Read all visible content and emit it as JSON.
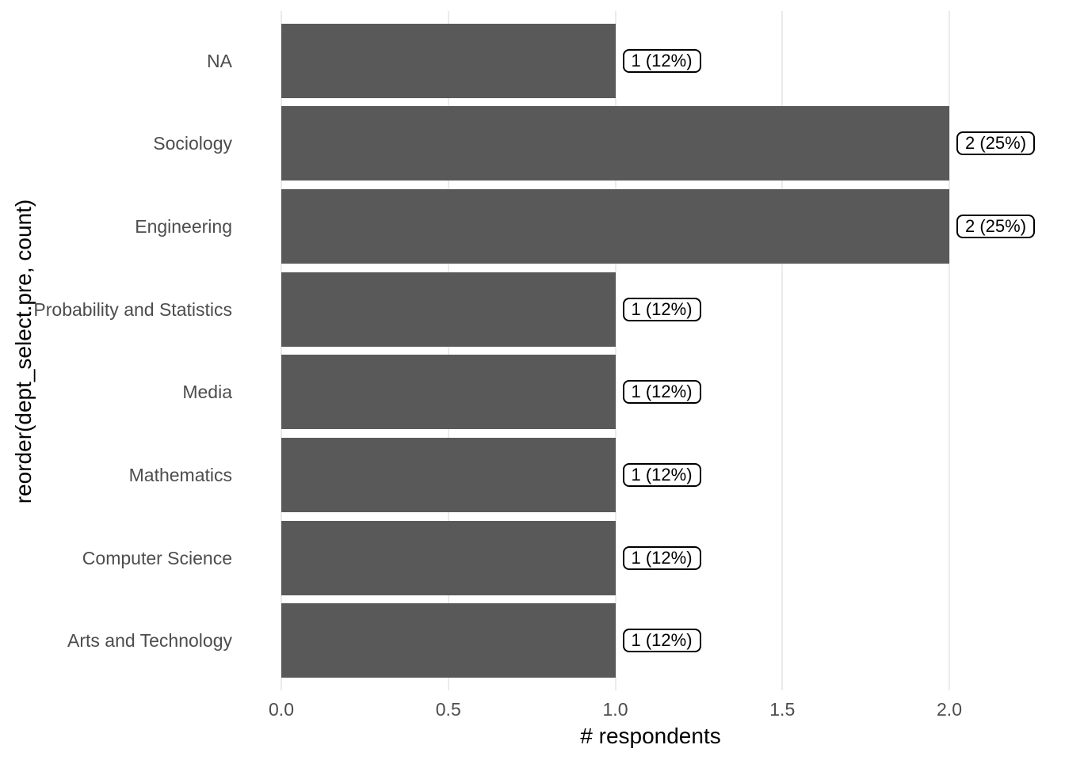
{
  "chart_data": {
    "type": "bar",
    "orientation": "horizontal",
    "title": "",
    "xlabel": "# respondents",
    "ylabel": "reorder(dept_select.pre, count)",
    "categories": [
      "NA",
      "Sociology",
      "Engineering",
      "Probability and Statistics",
      "Media",
      "Mathematics",
      "Computer Science",
      "Arts and Technology"
    ],
    "series": [
      {
        "name": "count",
        "values": [
          1,
          2,
          2,
          1,
          1,
          1,
          1,
          1
        ]
      }
    ],
    "bar_labels": [
      "1 (12%)",
      "2 (25%)",
      "2 (25%)",
      "1 (12%)",
      "1 (12%)",
      "1 (12%)",
      "1 (12%)",
      "1 (12%)"
    ],
    "x_ticks": [
      0.0,
      0.5,
      1.0,
      1.5,
      2.0
    ],
    "x_tick_labels": [
      "0.0",
      "0.5",
      "1.0",
      "1.5",
      "2.0"
    ],
    "xlim": [
      0,
      2.31
    ],
    "grid": "vertical-major-only",
    "legend": false,
    "colors": {
      "bar_fill": "#595959",
      "grid_line": "#ebebeb",
      "axis_text": "#4d4d4d",
      "axis_title": "#000000",
      "label_box_border": "#000000",
      "label_box_fill": "#ffffff",
      "panel_background": "#ffffff"
    }
  }
}
